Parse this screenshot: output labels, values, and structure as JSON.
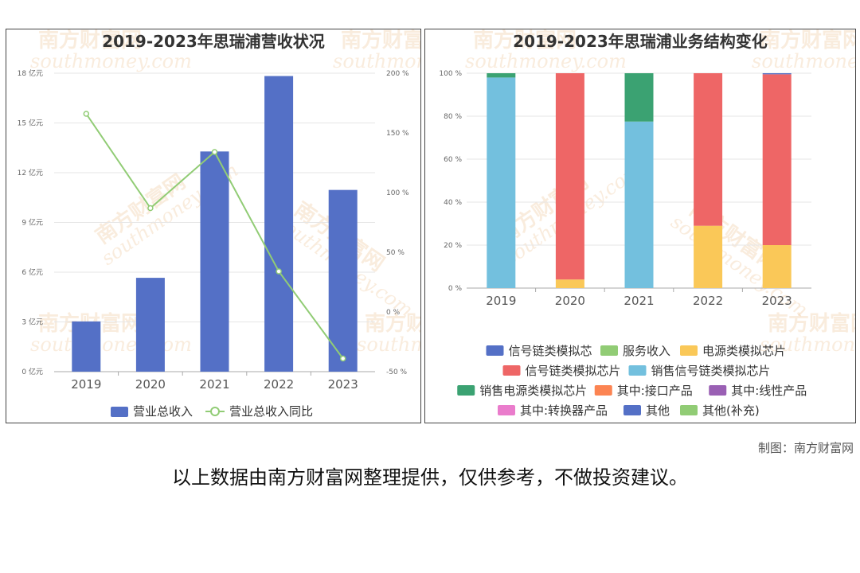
{
  "chart_data": [
    {
      "type": "bar",
      "title": "2019-2023年思瑞浦营收状况",
      "categories": [
        "2019",
        "2020",
        "2021",
        "2022",
        "2023"
      ],
      "series": [
        {
          "name": "营业总收入",
          "type": "bar",
          "axis": "left",
          "values": [
            3.03,
            5.66,
            13.28,
            17.83,
            10.96
          ],
          "color": "#5470c6"
        },
        {
          "name": "营业总收入同比",
          "type": "line",
          "axis": "right",
          "values": [
            166,
            87,
            134,
            34,
            -39
          ],
          "color": "#91cc75"
        }
      ],
      "y_left": {
        "ticks": [
          "0 亿元",
          "3 亿元",
          "6 亿元",
          "9 亿元",
          "12 亿元",
          "15 亿元",
          "18 亿元"
        ],
        "ylim": [
          0,
          18
        ]
      },
      "y_right": {
        "ticks": [
          "-50 %",
          "0 %",
          "50 %",
          "100 %",
          "150 %",
          "200 %"
        ],
        "ylim": [
          -50,
          200
        ]
      },
      "legend_position": "bottom"
    },
    {
      "type": "bar",
      "stacked": true,
      "title": "2019-2023年思瑞浦业务结构变化",
      "categories": [
        "2019",
        "2020",
        "2021",
        "2022",
        "2023"
      ],
      "y_ticks": [
        "0 %",
        "20 %",
        "40 %",
        "60 %",
        "80 %",
        "100 %"
      ],
      "ylim": [
        0,
        100
      ],
      "series": [
        {
          "name": "信号链类模拟芯",
          "color": "#5470c6",
          "values": [
            0,
            0,
            0,
            0,
            0
          ]
        },
        {
          "name": "服务收入",
          "color": "#91cc75",
          "values": [
            0,
            0,
            0,
            0,
            0
          ]
        },
        {
          "name": "电源类模拟芯片",
          "color": "#fac858",
          "values": [
            0,
            4,
            0,
            29,
            20
          ]
        },
        {
          "name": "信号链类模拟芯片",
          "color": "#ee6666",
          "values": [
            0,
            96,
            0,
            71,
            79.5
          ]
        },
        {
          "name": "销售信号链类模拟芯片",
          "color": "#73c0de",
          "values": [
            98,
            0,
            77.5,
            0,
            0
          ]
        },
        {
          "name": "销售电源类模拟芯片",
          "color": "#3ba272",
          "values": [
            2,
            0,
            22.5,
            0,
            0
          ]
        },
        {
          "name": "其中:接口产品",
          "color": "#fc8452",
          "values": [
            0,
            0,
            0,
            0,
            0
          ]
        },
        {
          "name": "其中:线性产品",
          "color": "#9a60b4",
          "values": [
            0,
            0,
            0,
            0,
            0
          ]
        },
        {
          "name": "其中:转换器产品",
          "color": "#ea7ccc",
          "values": [
            0,
            0,
            0,
            0,
            0
          ]
        },
        {
          "name": "其他",
          "color": "#5470c6",
          "values": [
            0,
            0,
            0,
            0,
            0.5
          ]
        },
        {
          "name": "其他(补充)",
          "color": "#91cc75",
          "values": [
            0,
            0,
            0,
            0,
            0
          ]
        }
      ],
      "legend_position": "bottom"
    }
  ],
  "watermark": {
    "cn": "南方财富网",
    "en": "southmoney.com"
  },
  "footer": {
    "credit": "制图：南方财富网",
    "disclaimer": "以上数据由南方财富网整理提供，仅供参考，不做投资建议。"
  }
}
